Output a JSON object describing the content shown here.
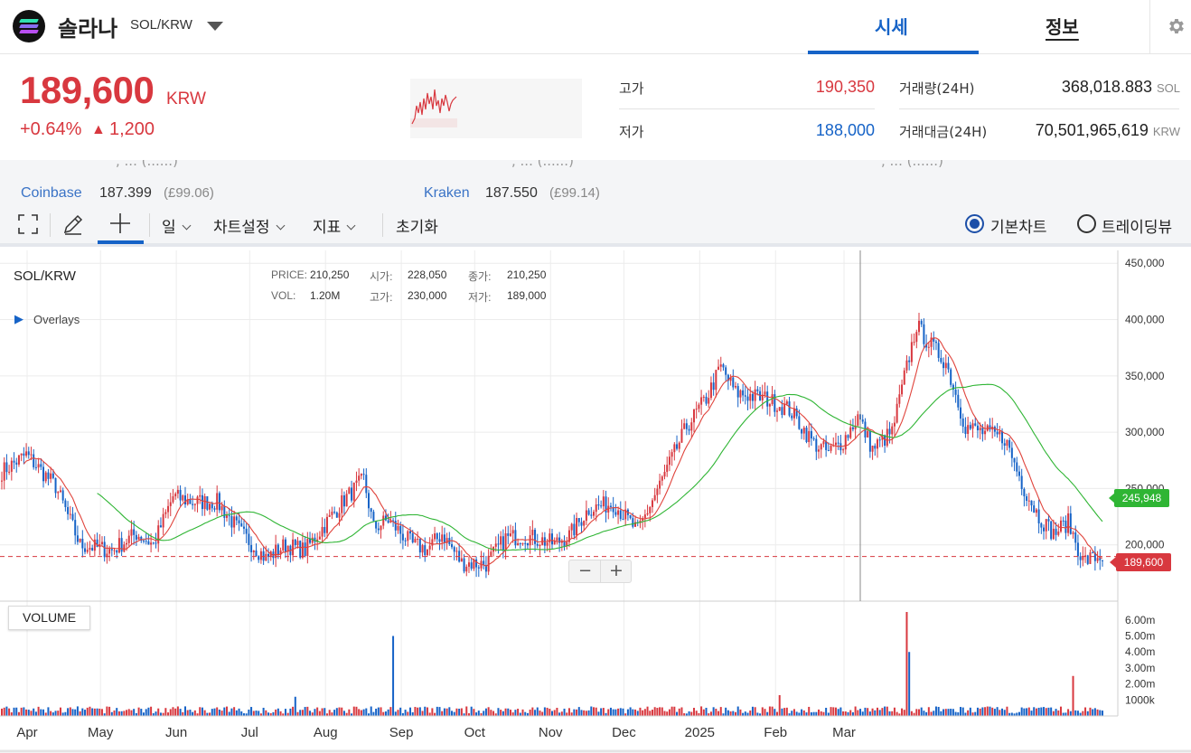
{
  "header": {
    "coin_name": "솔라나",
    "pair": "SOL/KRW",
    "tab_quote": "시세",
    "tab_info": "정보"
  },
  "price": {
    "current": "189,600",
    "unit": "KRW",
    "change_pct": "+0.64%",
    "change_arrow": "▲",
    "change_abs": "1,200"
  },
  "stats": {
    "high_label": "고가",
    "high_value": "190,350",
    "low_label": "저가",
    "low_value": "188,000",
    "volume_label": "거래량(24H)",
    "volume_value": "368,018.883",
    "volume_unit": "SOL",
    "amount_label": "거래대금(24H)",
    "amount_value": "70,501,965,619",
    "amount_unit": "KRW"
  },
  "exchanges": [
    {
      "name": "Coinbase",
      "price": "187.399",
      "gbp": "(£99.06)"
    },
    {
      "name": "Kraken",
      "price": "187.550",
      "gbp": "(£99.14)"
    }
  ],
  "toolbar": {
    "period": "일",
    "chart_settings": "차트설정",
    "indicators": "지표",
    "reset": "초기화",
    "mode_basic": "기본차트",
    "mode_tradingview": "트레이딩뷰"
  },
  "chart_panel": {
    "symbol": "SOL/KRW",
    "overlays": "Overlays",
    "volume_label": "VOLUME",
    "ohlc": {
      "price_label": "PRICE:",
      "price": "210,250",
      "open_label": "시가:",
      "open": "228,050",
      "close_label": "종가:",
      "close": "210,250",
      "vol_label": "VOL:",
      "vol": "1.20M",
      "high_label": "고가:",
      "high": "230,000",
      "low_label": "저가:",
      "low": "189,000"
    },
    "current_price_tag": "189,600",
    "ma_tag": "245,948"
  },
  "colors": {
    "up": "#d8383f",
    "down": "#1663c7",
    "ma_short": "#e0443c",
    "ma_long": "#2fb534",
    "accent": "#1663c7",
    "ma_tag": "#2fb534"
  },
  "chart_data": {
    "type": "candlestick",
    "x_ticks": [
      "Apr",
      "May",
      "Jun",
      "Jul",
      "Aug",
      "Sep",
      "Oct",
      "Nov",
      "Dec",
      "2025",
      "Feb",
      "Mar"
    ],
    "y_ticks": [
      "200,000",
      "250,000",
      "300,000",
      "350,000",
      "400,000",
      "450,000"
    ],
    "y_tick_values": [
      200000,
      250000,
      300000,
      350000,
      400000,
      450000
    ],
    "ylim": [
      150000,
      455000
    ],
    "volume_ticks": [
      "1000k",
      "2.00m",
      "3.00m",
      "4.00m",
      "5.00m",
      "6.00m"
    ],
    "volume_tick_values": [
      1000000,
      2000000,
      3000000,
      4000000,
      5000000,
      6000000
    ],
    "volume_ylim": [
      0,
      6500000
    ],
    "reference_line": 189600,
    "close_anchors": [
      [
        0,
        265000
      ],
      [
        10,
        280000
      ],
      [
        22,
        252000
      ],
      [
        32,
        200000
      ],
      [
        45,
        195000
      ],
      [
        55,
        210000
      ],
      [
        62,
        200000
      ],
      [
        70,
        243000
      ],
      [
        78,
        238000
      ],
      [
        88,
        238000
      ],
      [
        98,
        210000
      ],
      [
        108,
        188000
      ],
      [
        116,
        200000
      ],
      [
        124,
        195000
      ],
      [
        130,
        212000
      ],
      [
        140,
        240000
      ],
      [
        148,
        258000
      ],
      [
        152,
        215000
      ],
      [
        158,
        222000
      ],
      [
        168,
        200000
      ],
      [
        174,
        196000
      ],
      [
        180,
        210000
      ],
      [
        188,
        184000
      ],
      [
        198,
        183000
      ],
      [
        206,
        206000
      ],
      [
        214,
        208000
      ],
      [
        226,
        201000
      ],
      [
        232,
        208000
      ],
      [
        240,
        232000
      ],
      [
        250,
        237000
      ],
      [
        260,
        212000
      ],
      [
        270,
        258000
      ],
      [
        280,
        305000
      ],
      [
        288,
        330000
      ],
      [
        294,
        358000
      ],
      [
        300,
        335000
      ],
      [
        312,
        330000
      ],
      [
        322,
        320000
      ],
      [
        332,
        290000
      ],
      [
        338,
        282000
      ],
      [
        344,
        292000
      ],
      [
        350,
        314000
      ],
      [
        356,
        285000
      ],
      [
        364,
        300000
      ],
      [
        370,
        358000
      ],
      [
        374,
        395000
      ],
      [
        378,
        382000
      ],
      [
        386,
        362000
      ],
      [
        394,
        305000
      ],
      [
        404,
        298000
      ],
      [
        410,
        295000
      ],
      [
        418,
        250000
      ],
      [
        424,
        225000
      ],
      [
        430,
        210000
      ],
      [
        436,
        220000
      ],
      [
        442,
        186000
      ],
      [
        450,
        190000
      ]
    ],
    "volume_spikes": [
      [
        160,
        5000000
      ],
      [
        370,
        6500000
      ],
      [
        371,
        4000000
      ],
      [
        438,
        2500000
      ],
      [
        120,
        1200000
      ],
      [
        318,
        1300000
      ]
    ],
    "ma_short_period": 10,
    "ma_long_period": 40
  }
}
